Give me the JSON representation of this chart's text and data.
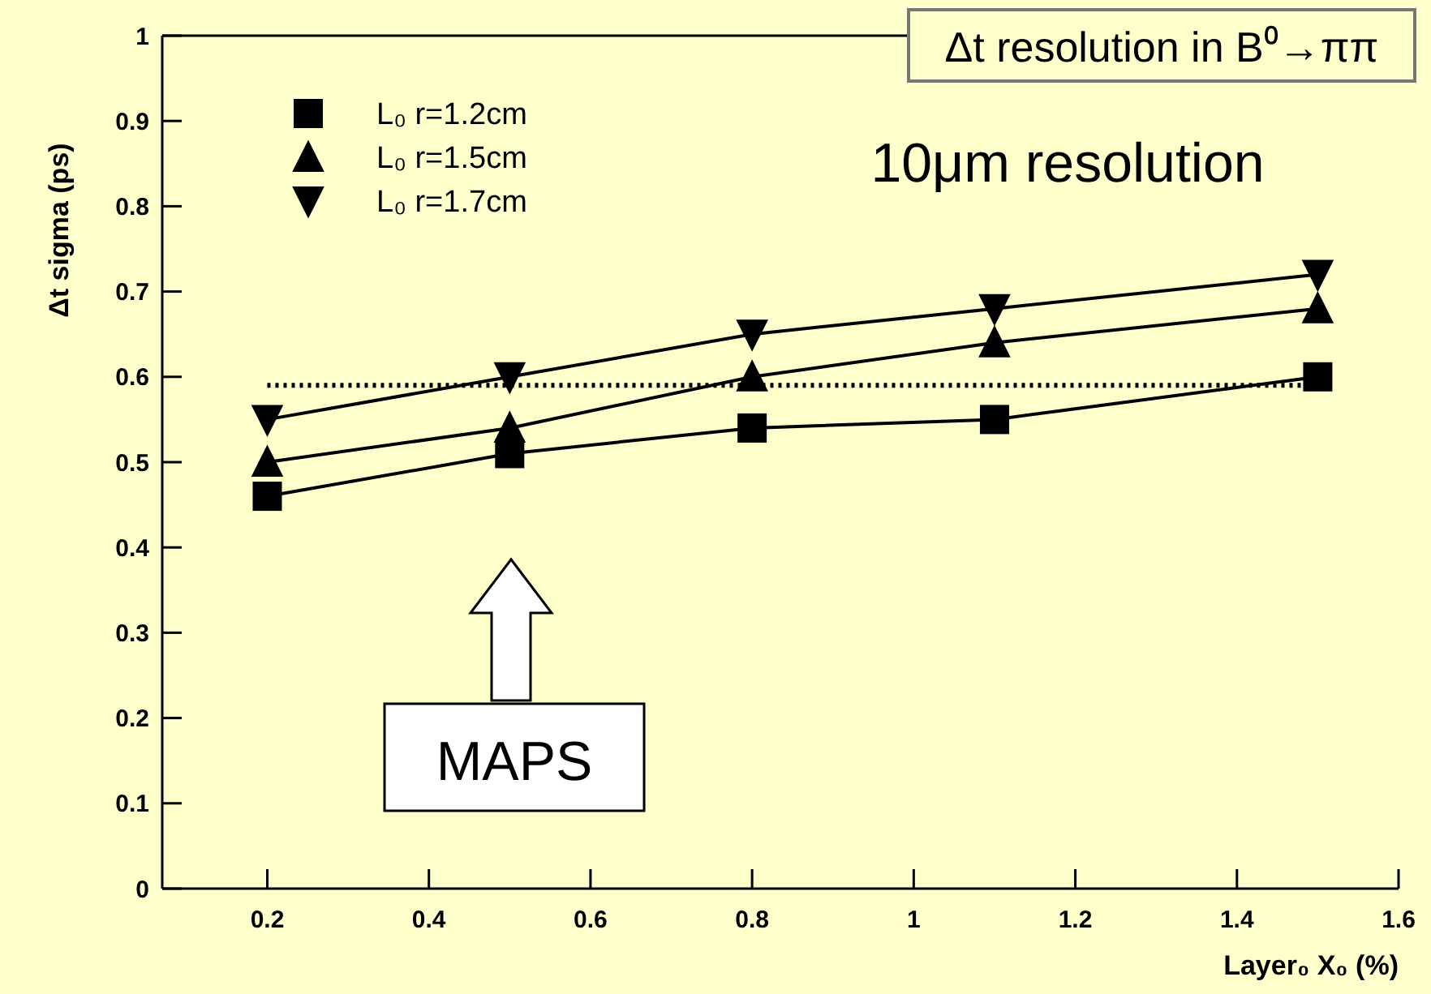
{
  "chart_data": {
    "type": "line",
    "title": "Δt resolution in B⁰→ππ",
    "xlabel": "Layer₀ X₀ (%)",
    "ylabel": "Δt sigma (ps)",
    "x": [
      0.2,
      0.5,
      0.8,
      1.1,
      1.5
    ],
    "series": [
      {
        "name": "L₀ r=1.2cm",
        "color": "#000000",
        "marker": "square",
        "values": [
          0.46,
          0.51,
          0.54,
          0.55,
          0.6
        ]
      },
      {
        "name": "L₀ r=1.5cm",
        "color": "#000000",
        "marker": "triangle",
        "values": [
          0.5,
          0.54,
          0.6,
          0.64,
          0.68
        ]
      },
      {
        "name": "L₀ r=1.7cm",
        "color": "#000000",
        "marker": "triangle-down",
        "values": [
          0.55,
          0.6,
          0.65,
          0.68,
          0.72
        ]
      }
    ],
    "xlim": [
      0.07,
      1.6
    ],
    "xticks": [
      0.2,
      0.4,
      0.6,
      0.8,
      1,
      1.2,
      1.4,
      1.6
    ],
    "ylim": [
      0,
      1
    ],
    "yticks": [
      0,
      0.1,
      0.2,
      0.3,
      0.4,
      0.5,
      0.6,
      0.7,
      0.8,
      0.9,
      1
    ],
    "ref_lines": [
      {
        "axis": "y",
        "value": 0.59,
        "line_style": "dotted",
        "color": "#000000"
      }
    ],
    "annotations": [
      "10μm resolution",
      "MAPS"
    ],
    "legend": "top left",
    "grid": false,
    "line_style": "solid"
  }
}
